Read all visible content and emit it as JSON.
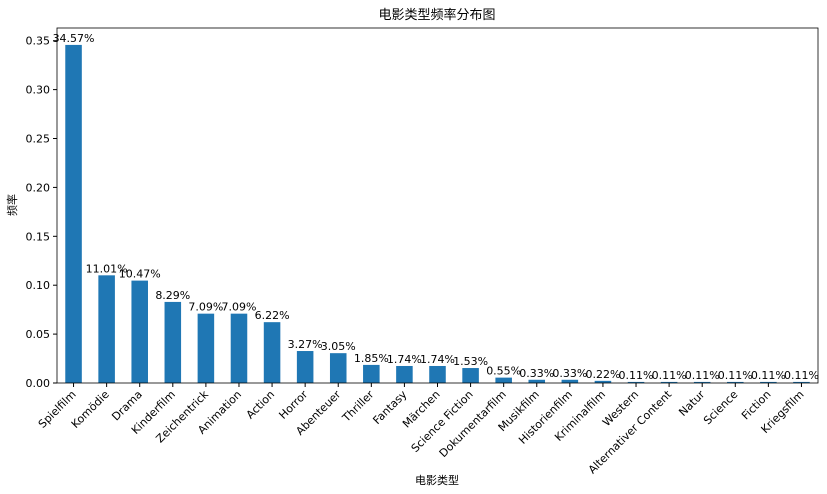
{
  "chart_data": {
    "type": "bar",
    "title": "电影类型频率分布图",
    "x_label": "电影类型",
    "y_label": "频率",
    "categories": [
      "Spielfilm",
      "Komödie",
      "Drama",
      "Kinderfilm",
      "Zeichentrick",
      "Animation",
      "Action",
      "Horror",
      "Abenteuer",
      "Thriller",
      "Fantasy",
      "Märchen",
      "Science Fiction",
      "Dokumentarfilm",
      "Musikfilm",
      "Historienfilm",
      "Kriminalfilm",
      "Western",
      "Alternativer Content",
      "Natur",
      "Science",
      "Fiction",
      "Kriegsfilm"
    ],
    "values": [
      0.3457,
      0.1101,
      0.1047,
      0.0829,
      0.0709,
      0.0709,
      0.0622,
      0.0327,
      0.0305,
      0.0185,
      0.0174,
      0.0174,
      0.0153,
      0.0055,
      0.0033,
      0.0033,
      0.0022,
      0.0011,
      0.0011,
      0.0011,
      0.0011,
      0.0011,
      0.0011
    ],
    "value_labels": [
      "34.57%",
      "11.01%",
      "10.47%",
      "8.29%",
      "7.09%",
      "7.09%",
      "6.22%",
      "3.27%",
      "3.05%",
      "1.85%",
      "1.74%",
      "1.74%",
      "1.53%",
      "0.55%",
      "0.33%",
      "0.33%",
      "0.22%",
      "0.11%",
      "0.11%",
      "0.11%",
      "0.11%",
      "0.11%",
      "0.11%"
    ],
    "color": "#1f77b4",
    "ylim": [
      0,
      0.363
    ],
    "yticks": [
      {
        "value": 0,
        "label": "0.00"
      },
      0.05,
      {
        "value": 0.1,
        "label": "0.10"
      },
      0.15,
      {
        "value": 0.2,
        "label": "0.20"
      },
      0.25,
      {
        "value": 0.3,
        "label": "0.30"
      },
      0.35
    ]
  }
}
